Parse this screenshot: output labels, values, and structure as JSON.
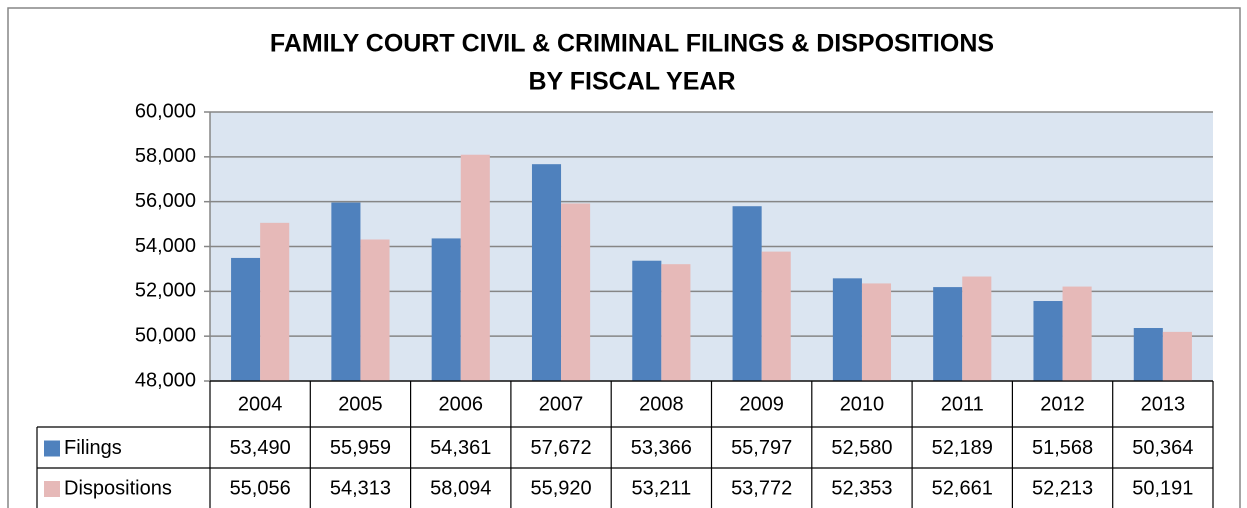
{
  "chart_data": {
    "type": "bar",
    "title": "FAMILY COURT CIVIL & CRIMINAL FILINGS & DISPOSITIONS",
    "subtitle": "BY FISCAL YEAR",
    "categories": [
      "2004",
      "2005",
      "2006",
      "2007",
      "2008",
      "2009",
      "2010",
      "2011",
      "2012",
      "2013"
    ],
    "series": [
      {
        "name": "Filings",
        "color": "#4f81bd",
        "values": [
          53490,
          55959,
          54361,
          57672,
          53366,
          55797,
          52580,
          52189,
          51568,
          50364
        ],
        "value_labels": [
          "53,490",
          "55,959",
          "54,361",
          "57,672",
          "53,366",
          "55,797",
          "52,580",
          "52,189",
          "51,568",
          "50,364"
        ]
      },
      {
        "name": "Dispositions",
        "color": "#e6b9b8",
        "values": [
          55056,
          54313,
          58094,
          55920,
          53211,
          53772,
          52353,
          52661,
          52213,
          50191
        ],
        "value_labels": [
          "55,056",
          "54,313",
          "58,094",
          "55,920",
          "53,211",
          "53,772",
          "52,353",
          "52,661",
          "52,213",
          "50,191"
        ]
      }
    ],
    "ylim": [
      48000,
      60000
    ],
    "yticks": [
      {
        "value": 48000,
        "label": "48,000"
      },
      {
        "value": 50000,
        "label": "50,000"
      },
      {
        "value": 52000,
        "label": "52,000"
      },
      {
        "value": 54000,
        "label": "54,000"
      },
      {
        "value": 56000,
        "label": "56,000"
      },
      {
        "value": 58000,
        "label": "58,000"
      },
      {
        "value": 60000,
        "label": "60,000"
      }
    ],
    "grid": true
  }
}
